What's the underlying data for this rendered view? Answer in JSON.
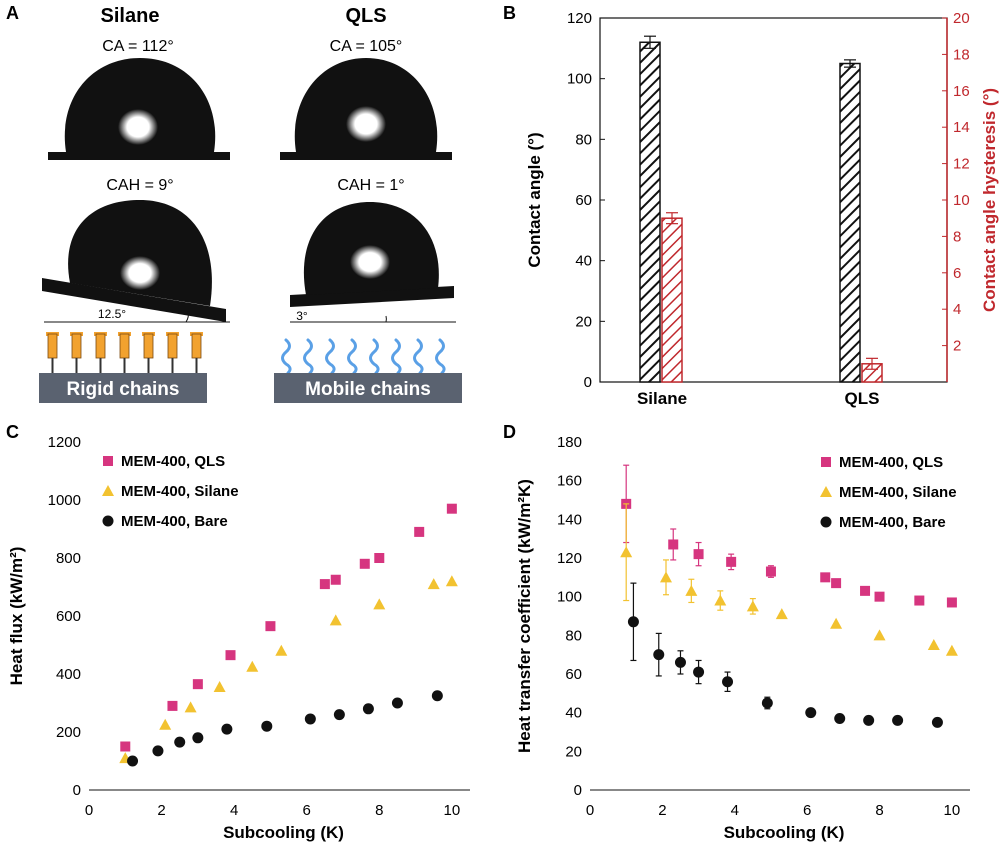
{
  "figure": {
    "panel_letters": [
      "A",
      "B",
      "C",
      "D"
    ]
  },
  "panel_a": {
    "samples": [
      {
        "name": "Silane",
        "ca_text": "CA = 112°",
        "cah_text": "CAH = 9°",
        "tilt_text": "12.5°",
        "chains_label": "Rigid chains"
      },
      {
        "name": "QLS",
        "ca_text": "CA = 105°",
        "cah_text": "CAH = 1°",
        "tilt_text": "3°",
        "chains_label": "Mobile chains"
      }
    ],
    "colors": {
      "drop": "#111111",
      "rigid_chain": "#f2a22f",
      "mobile_chain": "#5aa0e6",
      "chain_box": "#5a6270"
    }
  },
  "chart_data": [
    {
      "panel": "B",
      "type": "bar",
      "categories": [
        "Silane",
        "QLS"
      ],
      "ylabel": "Contact angle (°)",
      "ylim": [
        0,
        120
      ],
      "yticks": [
        0,
        20,
        40,
        60,
        80,
        100,
        120
      ],
      "y2label": "Contact angle hysteresis (°)",
      "y2lim": [
        0,
        20
      ],
      "y2ticks": [
        2,
        4,
        6,
        8,
        10,
        12,
        14,
        16,
        18,
        20
      ],
      "series": [
        {
          "axis": "left",
          "values": [
            112,
            105
          ],
          "errors": [
            2,
            1.2
          ],
          "color": "#111111",
          "pattern": "hatched"
        },
        {
          "axis": "right",
          "values": [
            9,
            1
          ],
          "errors": [
            0.3,
            0.3
          ],
          "color": "#c0282d",
          "pattern": "hatched"
        }
      ]
    },
    {
      "panel": "C",
      "type": "scatter",
      "xlabel": "Subcooling (K)",
      "ylabel": "Heat flux (kW/m²)",
      "xlim": [
        0,
        10.5
      ],
      "xticks": [
        0,
        2,
        4,
        6,
        8,
        10
      ],
      "ylim": [
        0,
        1200
      ],
      "yticks": [
        0,
        200,
        400,
        600,
        800,
        1000,
        1200
      ],
      "legend_position": "top-left",
      "series": [
        {
          "name": "MEM-400, QLS",
          "marker": "square",
          "color": "#d6357f",
          "x": [
            1.0,
            2.3,
            3.0,
            3.9,
            5.0,
            6.5,
            6.8,
            7.6,
            8.0,
            9.1,
            10.0
          ],
          "y": [
            150,
            290,
            365,
            465,
            565,
            710,
            725,
            780,
            800,
            890,
            970
          ]
        },
        {
          "name": "MEM-400, Silane",
          "marker": "triangle",
          "color": "#f2c230",
          "x": [
            1.0,
            2.1,
            2.8,
            3.6,
            4.5,
            5.3,
            6.8,
            8.0,
            9.5,
            10.0
          ],
          "y": [
            110,
            225,
            285,
            355,
            425,
            480,
            585,
            640,
            710,
            720
          ]
        },
        {
          "name": "MEM-400, Bare",
          "marker": "circle",
          "color": "#111111",
          "x": [
            1.2,
            1.9,
            2.5,
            3.0,
            3.8,
            4.9,
            6.1,
            6.9,
            7.7,
            8.5,
            9.6
          ],
          "y": [
            100,
            135,
            165,
            180,
            210,
            220,
            245,
            260,
            280,
            300,
            325
          ]
        }
      ]
    },
    {
      "panel": "D",
      "type": "scatter",
      "xlabel": "Subcooling (K)",
      "ylabel": "Heat transfer coefficient (kW/m²K)",
      "xlim": [
        0,
        10.5
      ],
      "xticks": [
        0,
        2,
        4,
        6,
        8,
        10
      ],
      "ylim": [
        0,
        180
      ],
      "yticks": [
        0,
        20,
        40,
        60,
        80,
        100,
        120,
        140,
        160,
        180
      ],
      "legend_position": "top-right",
      "series": [
        {
          "name": "MEM-400, QLS",
          "marker": "square",
          "color": "#d6357f",
          "x": [
            1.0,
            2.3,
            3.0,
            3.9,
            5.0,
            6.5,
            6.8,
            7.6,
            8.0,
            9.1,
            10.0
          ],
          "y": [
            148,
            127,
            122,
            118,
            113,
            110,
            107,
            103,
            100,
            98,
            97
          ],
          "errors": [
            20,
            8,
            6,
            4,
            3,
            0,
            0,
            0,
            0,
            0,
            0
          ]
        },
        {
          "name": "MEM-400, Silane",
          "marker": "triangle",
          "color": "#f2c230",
          "x": [
            1.0,
            2.1,
            2.8,
            3.6,
            4.5,
            5.3,
            6.8,
            8.0,
            9.5,
            10.0
          ],
          "y": [
            123,
            110,
            103,
            98,
            95,
            91,
            86,
            80,
            75,
            72
          ],
          "errors": [
            25,
            9,
            6,
            5,
            4,
            0,
            0,
            0,
            0,
            0
          ]
        },
        {
          "name": "MEM-400, Bare",
          "marker": "circle",
          "color": "#111111",
          "x": [
            1.2,
            1.9,
            2.5,
            3.0,
            3.8,
            4.9,
            6.1,
            6.9,
            7.7,
            8.5,
            9.6
          ],
          "y": [
            87,
            70,
            66,
            61,
            56,
            45,
            40,
            37,
            36,
            36,
            35
          ],
          "errors": [
            20,
            11,
            6,
            6,
            5,
            3,
            2,
            0,
            0,
            0,
            0
          ]
        }
      ]
    }
  ]
}
